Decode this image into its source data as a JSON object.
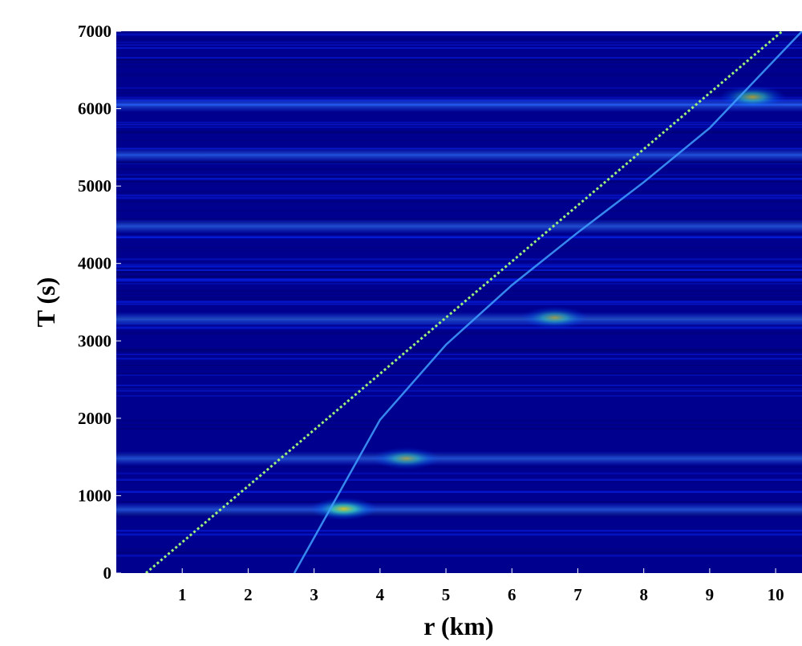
{
  "chart_data": {
    "type": "heatmap",
    "title": "",
    "xlabel": "r (km)",
    "ylabel": "T (s)",
    "xlim": [
      0,
      10.4
    ],
    "ylim": [
      0,
      7000
    ],
    "x_ticks": [
      "1",
      "2",
      "3",
      "4",
      "5",
      "6",
      "7",
      "8",
      "9",
      "10"
    ],
    "y_ticks": [
      "0",
      "1000",
      "2000",
      "3000",
      "4000",
      "5000",
      "6000",
      "7000"
    ],
    "colormap": "jet",
    "background_color": "#00008f",
    "grid": false,
    "legend": "none",
    "direct_arrival_line": {
      "x": [
        0.45,
        10.1
      ],
      "y": [
        0,
        7000
      ]
    },
    "secondary_arrival_line": {
      "x": [
        2.7,
        4.0,
        5.0,
        6.0,
        7.0,
        8.0,
        9.0,
        10.4
      ],
      "y": [
        0,
        1980,
        2950,
        3720,
        4400,
        5050,
        5750,
        7000
      ]
    },
    "bright_bands_T": [
      820,
      1480,
      3280,
      4480,
      5400,
      6050
    ],
    "hotspots": [
      {
        "x": 3.45,
        "y": 830,
        "intensity": 0.85
      },
      {
        "x": 4.4,
        "y": 1480,
        "intensity": 0.6
      },
      {
        "x": 6.65,
        "y": 3300,
        "intensity": 0.6
      },
      {
        "x": 9.65,
        "y": 6150,
        "intensity": 0.7
      }
    ]
  }
}
